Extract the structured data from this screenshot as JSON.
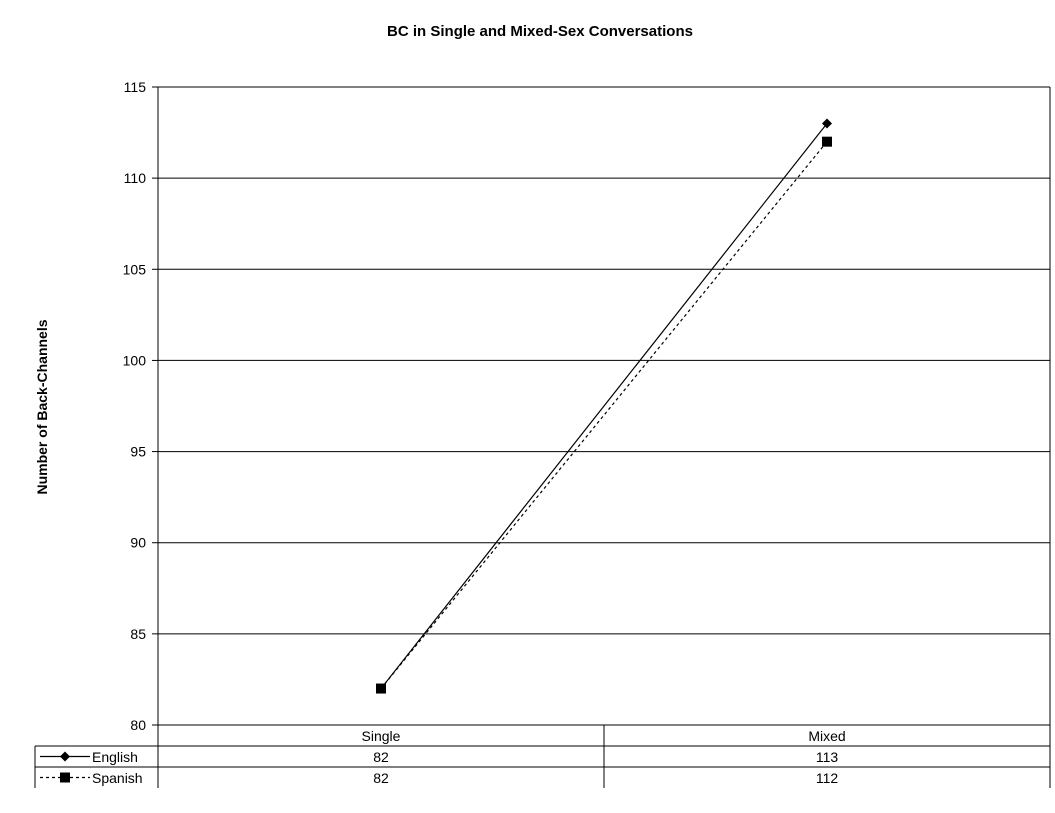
{
  "chart_data": {
    "type": "line",
    "title": "BC in Single and Mixed-Sex Conversations",
    "xlabel": "",
    "ylabel": "Number of Back-Channels",
    "ylim": [
      80,
      115
    ],
    "yticks": [
      80,
      85,
      90,
      95,
      100,
      105,
      110,
      115
    ],
    "grid": true,
    "legend": "data-table-left",
    "categories": [
      "Single",
      "Mixed"
    ],
    "series": [
      {
        "name": "English",
        "values": [
          82,
          113
        ],
        "marker": "diamond",
        "line": "solid",
        "color": "#000000"
      },
      {
        "name": "Spanish",
        "values": [
          82,
          112
        ],
        "marker": "square",
        "line": "dotted",
        "color": "#000000"
      }
    ]
  }
}
